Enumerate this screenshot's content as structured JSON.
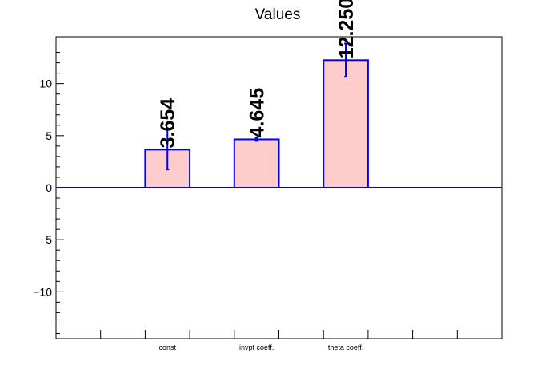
{
  "chart_data": {
    "type": "bar",
    "title": "Values",
    "categories": [
      "const",
      "invpt coeff.",
      "theta coeff."
    ],
    "values": [
      3.654,
      4.645,
      12.25
    ],
    "value_labels": [
      "3.654",
      "4.645",
      "12.250"
    ],
    "errors": [
      1.9,
      0.15,
      1.6
    ],
    "ylim": [
      -14.5,
      14.5
    ],
    "yticks": [
      -10,
      -5,
      0,
      5,
      10
    ],
    "ytick_labels": [
      "−10",
      "−5",
      "0",
      "5",
      "10"
    ],
    "xlabel": "",
    "ylabel": "",
    "grid": false,
    "colors": {
      "bar_fill": "#ffcccc",
      "bar_edge": "#0000ee",
      "axis": "#000000",
      "zero_line": "#0000ee"
    }
  }
}
